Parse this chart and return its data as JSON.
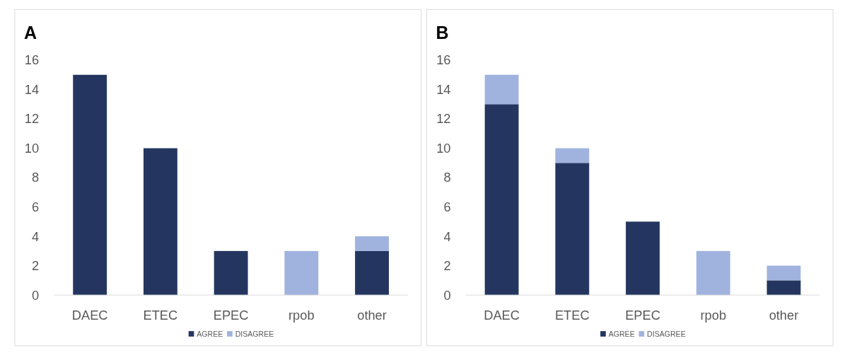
{
  "chart_data": [
    {
      "type": "bar",
      "title": "A",
      "stacked": true,
      "categories": [
        "DAEC",
        "ETEC",
        "EPEC",
        "rpob",
        "other"
      ],
      "ylim": [
        0,
        16
      ],
      "yticks": [
        0,
        2,
        4,
        6,
        8,
        10,
        12,
        14,
        16
      ],
      "legend": "bottom",
      "grid": false,
      "series": [
        {
          "name": "AGREE",
          "color": "#243660",
          "values": [
            15,
            10,
            3,
            0,
            3
          ]
        },
        {
          "name": "DISAGREE",
          "color": "#a0b3de",
          "values": [
            0,
            0,
            0,
            3,
            1
          ]
        }
      ]
    },
    {
      "type": "bar",
      "title": "B",
      "stacked": true,
      "categories": [
        "DAEC",
        "ETEC",
        "EPEC",
        "rpob",
        "other"
      ],
      "ylim": [
        0,
        16
      ],
      "yticks": [
        0,
        2,
        4,
        6,
        8,
        10,
        12,
        14,
        16
      ],
      "legend": "bottom",
      "grid": false,
      "series": [
        {
          "name": "AGREE",
          "color": "#243660",
          "values": [
            13,
            9,
            5,
            0,
            1
          ]
        },
        {
          "name": "DISAGREE",
          "color": "#a0b3de",
          "values": [
            2,
            1,
            0,
            3,
            1
          ]
        }
      ]
    }
  ]
}
